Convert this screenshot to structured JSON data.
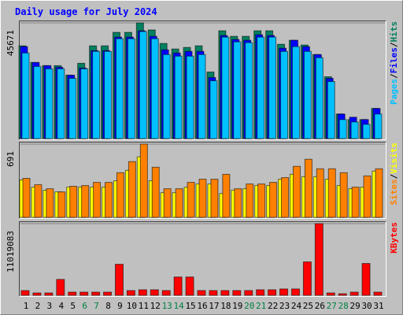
{
  "chart_data": [
    {
      "type": "bar",
      "title": "Daily usage for July 2024",
      "separator": "/",
      "categories": [
        "1",
        "2",
        "3",
        "4",
        "5",
        "6",
        "7",
        "8",
        "9",
        "10",
        "11",
        "12",
        "13",
        "14",
        "15",
        "16",
        "17",
        "18",
        "19",
        "20",
        "21",
        "22",
        "23",
        "24",
        "25",
        "26",
        "27",
        "28",
        "29",
        "30",
        "31"
      ],
      "ylim": [
        0,
        45671
      ],
      "yticks": [
        45671
      ],
      "series": [
        {
          "name": "Pages",
          "color": "#00c0ff",
          "values": [
            33780,
            28460,
            27530,
            27530,
            23770,
            27530,
            34410,
            34410,
            39410,
            39410,
            42230,
            39410,
            33160,
            32530,
            32530,
            33160,
            22830,
            40040,
            38160,
            37850,
            40040,
            40040,
            34410,
            36290,
            34410,
            31910,
            22520,
            7510,
            6570,
            5630,
            9700
          ]
        },
        {
          "name": "Files",
          "color": "#0000ff",
          "values": [
            36290,
            30030,
            28780,
            28150,
            25030,
            27840,
            34720,
            34720,
            40040,
            40040,
            42540,
            40350,
            35030,
            33780,
            34410,
            34410,
            24090,
            40660,
            39100,
            38790,
            40980,
            40660,
            35660,
            38790,
            36290,
            33160,
            23770,
            9700,
            8450,
            7510,
            11890
          ]
        },
        {
          "name": "Hits",
          "color": "#008060",
          "values": [
            36600,
            30030,
            28780,
            28780,
            25030,
            29720,
            36600,
            36600,
            41920,
            41920,
            45671,
            42860,
            37540,
            35350,
            35970,
            36600,
            26280,
            42540,
            40350,
            40350,
            42540,
            42540,
            37220,
            38790,
            36910,
            33160,
            24400,
            9700,
            7510,
            7510,
            11890
          ]
        }
      ]
    },
    {
      "type": "bar",
      "categories": [
        "1",
        "2",
        "3",
        "4",
        "5",
        "6",
        "7",
        "8",
        "9",
        "10",
        "11",
        "12",
        "13",
        "14",
        "15",
        "16",
        "17",
        "18",
        "19",
        "20",
        "21",
        "22",
        "23",
        "24",
        "25",
        "26",
        "27",
        "28",
        "29",
        "30",
        "31"
      ],
      "ylim": [
        0,
        691
      ],
      "yticks": [
        691
      ],
      "series": [
        {
          "name": "Sites",
          "color": "#ff8000",
          "values": [
            368,
            308,
            270,
            240,
            293,
            300,
            330,
            330,
            421,
            526,
            691,
            473,
            270,
            270,
            330,
            360,
            360,
            406,
            270,
            315,
            315,
            330,
            375,
            481,
            548,
            458,
            458,
            421,
            285,
            391,
            458
          ]
        },
        {
          "name": "Visits",
          "color": "#ffff00",
          "values": [
            353,
            285,
            255,
            240,
            285,
            285,
            285,
            285,
            345,
            443,
            571,
            345,
            233,
            233,
            285,
            315,
            315,
            225,
            255,
            270,
            300,
            300,
            360,
            406,
            383,
            383,
            360,
            300,
            270,
            285,
            436
          ]
        }
      ]
    },
    {
      "type": "bar",
      "categories": [
        "1",
        "2",
        "3",
        "4",
        "5",
        "6",
        "7",
        "8",
        "9",
        "10",
        "11",
        "12",
        "13",
        "14",
        "15",
        "16",
        "17",
        "18",
        "19",
        "20",
        "21",
        "22",
        "23",
        "24",
        "25",
        "26",
        "27",
        "28",
        "29",
        "30",
        "31"
      ],
      "category_colors": [
        "#000000",
        "#000000",
        "#000000",
        "#000000",
        "#000000",
        "#008040",
        "#008040",
        "#000000",
        "#000000",
        "#000000",
        "#000000",
        "#000000",
        "#008040",
        "#008040",
        "#000000",
        "#000000",
        "#000000",
        "#000000",
        "#000000",
        "#008040",
        "#008040",
        "#000000",
        "#000000",
        "#000000",
        "#000000",
        "#000000",
        "#008040",
        "#008040",
        "#000000",
        "#000000",
        "#000000"
      ],
      "ylim": [
        0,
        11019083
      ],
      "yticks": [
        11019083
      ],
      "series": [
        {
          "name": "KBytes",
          "color": "#ff0000",
          "values": [
            734600,
            367300,
            367300,
            2448700,
            489700,
            489700,
            489700,
            489700,
            4774900,
            734600,
            857000,
            857000,
            734600,
            2816000,
            2816000,
            734600,
            734600,
            734600,
            734600,
            734600,
            857000,
            857000,
            979500,
            979500,
            5142200,
            11019083,
            367300,
            244900,
            489700,
            4897400,
            489700
          ]
        }
      ]
    }
  ]
}
